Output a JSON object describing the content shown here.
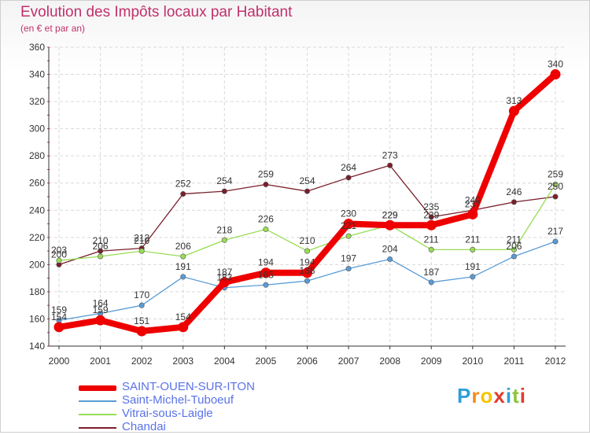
{
  "header": {
    "title": "Evolution des Impôts locaux par Habitant",
    "subtitle": "(en € et par an)"
  },
  "logo": {
    "letters": [
      "P",
      "r",
      "o",
      "x",
      "i",
      "t",
      "i"
    ],
    "colors": [
      "#2e9fd8",
      "#f28c1e",
      "#f5c400",
      "#e23b2e",
      "#2e9fd8",
      "#8cc43a",
      "#e23b2e"
    ]
  },
  "chart_data": {
    "type": "line",
    "title": "Evolution des Impôts locaux par Habitant",
    "subtitle": "(en € et par an)",
    "xlabel": "",
    "ylabel": "",
    "ylim": [
      140,
      360
    ],
    "yticks": [
      140,
      160,
      180,
      200,
      220,
      240,
      260,
      280,
      300,
      320,
      340,
      360
    ],
    "grid": true,
    "categories": [
      "2000",
      "2001",
      "2002",
      "2003",
      "2004",
      "2005",
      "2006",
      "2007",
      "2008",
      "2009",
      "2010",
      "2011",
      "2012"
    ],
    "series": [
      {
        "name": "SAINT-OUEN-SUR-ITON",
        "color": "#ee0000",
        "values": [
          154,
          159,
          151,
          154,
          187,
          194,
          194,
          230,
          229,
          229,
          237,
          313,
          340
        ],
        "labels": [
          "154",
          "159",
          "151",
          "154",
          "187",
          "194",
          "194",
          "230",
          "229",
          "229",
          "237",
          "313",
          "340"
        ]
      },
      {
        "name": "Saint-Michel-Tuboeuf",
        "color": "#5b9bd5",
        "values": [
          159,
          164,
          170,
          191,
          183,
          185,
          188,
          197,
          204,
          187,
          191,
          206,
          217
        ],
        "labels": [
          "159",
          "164",
          "170",
          "191",
          "183",
          "185",
          "188",
          "197",
          "204",
          "187",
          "191",
          "206",
          "217"
        ]
      },
      {
        "name": "Vitrai-sous-Laigle",
        "color": "#99dd55",
        "values": [
          203,
          206,
          210,
          206,
          218,
          226,
          210,
          221,
          229,
          211,
          211,
          211,
          259
        ],
        "labels": [
          "203",
          "206",
          "210",
          "206",
          "218",
          "226",
          "210",
          "221",
          "229",
          "211",
          "211",
          "211",
          "259"
        ]
      },
      {
        "name": "Chandai",
        "color": "#7a1f2b",
        "values": [
          200,
          210,
          212,
          252,
          254,
          259,
          254,
          264,
          273,
          235,
          240,
          246,
          250
        ],
        "labels": [
          "200",
          "210",
          "212",
          "252",
          "254",
          "259",
          "254",
          "264",
          "273",
          "235",
          "240",
          "246",
          "250"
        ]
      }
    ]
  }
}
